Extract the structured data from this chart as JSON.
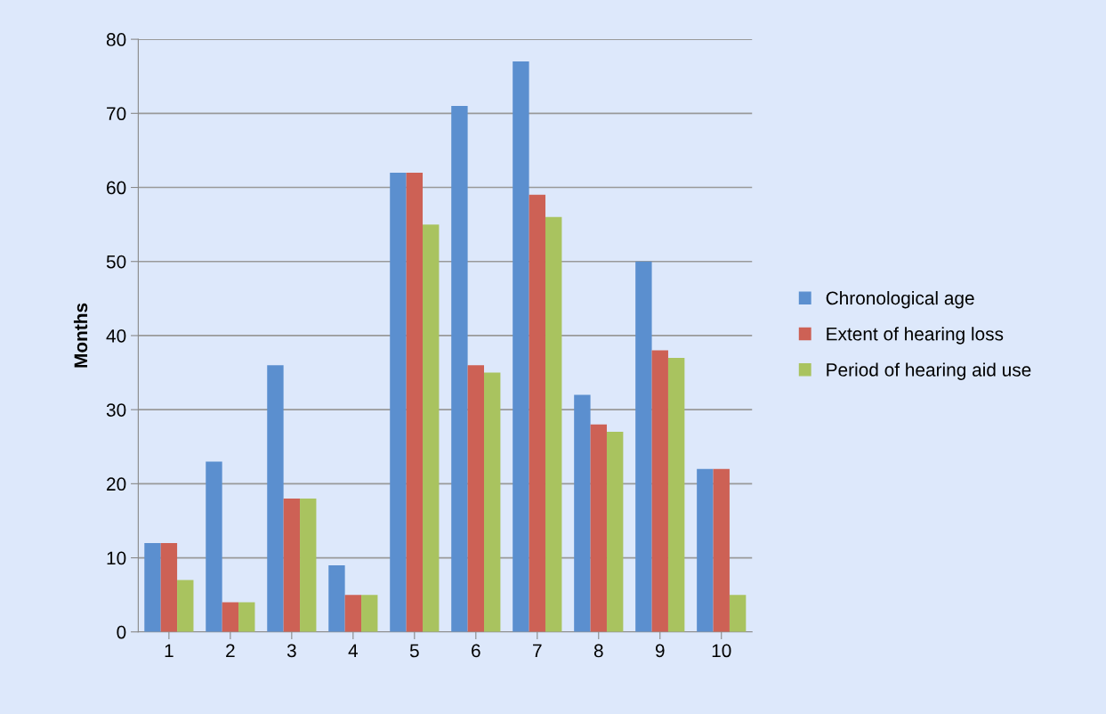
{
  "chart_data": {
    "type": "bar",
    "ylabel": "Months",
    "categories": [
      "1",
      "2",
      "3",
      "4",
      "5",
      "6",
      "7",
      "8",
      "9",
      "10"
    ],
    "series": [
      {
        "name": "Chronological age",
        "color": "#5b8fcf",
        "values": [
          12,
          23,
          36,
          9,
          62,
          71,
          77,
          32,
          50,
          22
        ]
      },
      {
        "name": "Extent of hearing loss",
        "color": "#cd6155",
        "values": [
          12,
          4,
          18,
          5,
          62,
          36,
          59,
          28,
          38,
          22
        ]
      },
      {
        "name": "Period of hearing aid use",
        "color": "#a9c35f",
        "values": [
          7,
          4,
          18,
          5,
          55,
          35,
          56,
          27,
          37,
          5
        ]
      }
    ],
    "ylim": [
      0,
      80
    ],
    "yticks": [
      0,
      10,
      20,
      30,
      40,
      50,
      60,
      70,
      80
    ],
    "grid": "y",
    "legend": "right"
  }
}
